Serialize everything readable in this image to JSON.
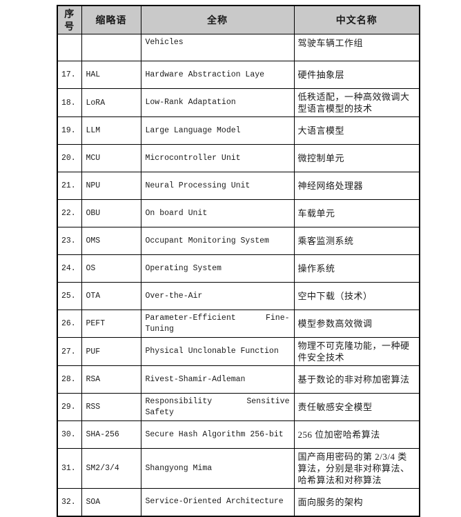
{
  "page": {
    "background": "#ffffff",
    "type": "document-table-page"
  },
  "table": {
    "border_color": "#000000",
    "header_bg": "#c9c9c9",
    "header": {
      "no": "序号",
      "abbr": "缩略语",
      "full": "全称",
      "cn": "中文名称"
    },
    "rows": [
      {
        "no": "",
        "abbr": "",
        "full": "Vehicles",
        "cn": "驾驶车辆工作组"
      },
      {
        "no": "17.",
        "abbr": "HAL",
        "full": "Hardware Abstraction Laye",
        "cn": "硬件抽象层"
      },
      {
        "no": "18.",
        "abbr": "LoRA",
        "full": "Low-Rank Adaptation",
        "cn": "低秩适配，一种高效微调大型语言模型的技术"
      },
      {
        "no": "19.",
        "abbr": "LLM",
        "full": "Large Language Model",
        "cn": "大语言模型"
      },
      {
        "no": "20.",
        "abbr": "MCU",
        "full": "Microcontroller Unit",
        "cn": "微控制单元"
      },
      {
        "no": "21.",
        "abbr": "NPU",
        "full": "Neural Processing Unit",
        "cn": "神经网络处理器"
      },
      {
        "no": "22.",
        "abbr": "OBU",
        "full": "On board Unit",
        "cn": "车载单元"
      },
      {
        "no": "23.",
        "abbr": "OMS",
        "full": "Occupant Monitoring System",
        "cn": "乘客监测系统"
      },
      {
        "no": "24.",
        "abbr": "OS",
        "full": "Operating System",
        "cn": "操作系统"
      },
      {
        "no": "25.",
        "abbr": "OTA",
        "full": "Over-the-Air",
        "cn": "空中下载（技术）"
      },
      {
        "no": "26.",
        "abbr": "PEFT",
        "full": "Parameter-Efficient Fine-Tuning",
        "cn": "模型参数高效微调"
      },
      {
        "no": "27.",
        "abbr": "PUF",
        "full": "Physical Unclonable Function",
        "cn": "物理不可克隆功能，一种硬件安全技术"
      },
      {
        "no": "28.",
        "abbr": "RSA",
        "full": "Rivest-Shamir-Adleman",
        "cn": "基于数论的非对称加密算法"
      },
      {
        "no": "29.",
        "abbr": "RSS",
        "full": "Responsibility Sensitive Safety",
        "cn": "责任敏感安全模型"
      },
      {
        "no": "30.",
        "abbr": "SHA-256",
        "full": "Secure Hash Algorithm 256-bit",
        "cn": "256 位加密哈希算法"
      },
      {
        "no": "31.",
        "abbr": "SM2/3/4",
        "full": "Shangyong Mima",
        "cn": "国产商用密码的第 2/3/4 类算法，分别是非对称算法、哈希算法和对称算法"
      },
      {
        "no": "32.",
        "abbr": "SOA",
        "full": "Service-Oriented Architecture",
        "cn": "面向服务的架构"
      }
    ]
  }
}
